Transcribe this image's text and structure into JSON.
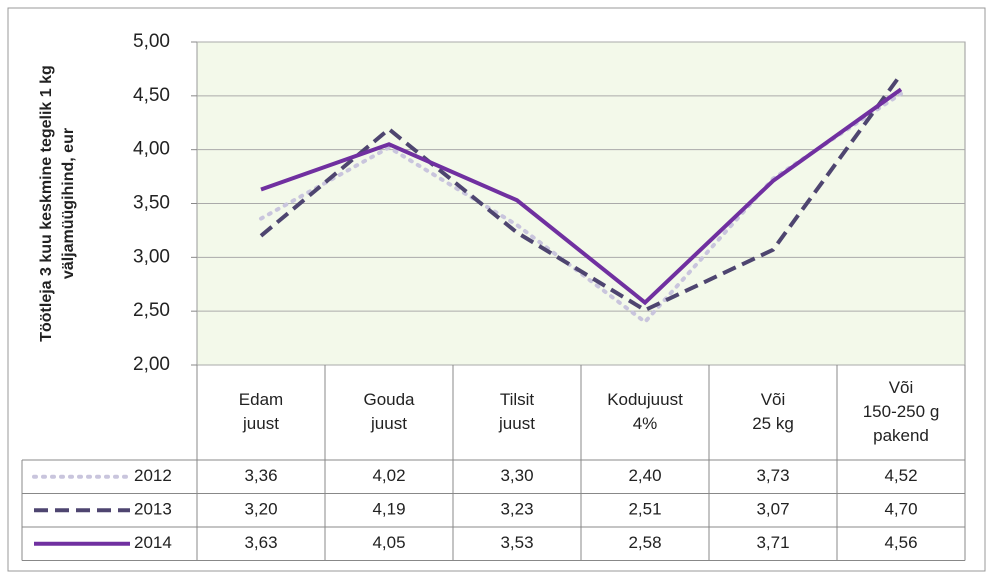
{
  "chart_data": {
    "type": "line",
    "y_label": [
      "Töötleja 3 kuu keskmine tegelik 1 kg",
      "väljamüügihind, eur"
    ],
    "categories": [
      [
        "Edam",
        "juust"
      ],
      [
        "Gouda",
        "juust"
      ],
      [
        "Tilsit",
        "juust"
      ],
      [
        "Kodujuust",
        "4%"
      ],
      [
        "Või",
        "25 kg"
      ],
      [
        "Või",
        "150-250 g",
        "pakend"
      ]
    ],
    "series": [
      {
        "name": "2012",
        "color": "#c9c5dd",
        "style": "dotted",
        "values": [
          3.36,
          4.02,
          3.3,
          2.4,
          3.73,
          4.52
        ],
        "value_labels": [
          "3,36",
          "4,02",
          "3,30",
          "2,40",
          "3,73",
          "4,52"
        ]
      },
      {
        "name": "2013",
        "color": "#4e4570",
        "style": "dashed",
        "values": [
          3.2,
          4.19,
          3.23,
          2.51,
          3.07,
          4.7
        ],
        "value_labels": [
          "3,20",
          "4,19",
          "3,23",
          "2,51",
          "3,07",
          "4,70"
        ]
      },
      {
        "name": "2014",
        "color": "#7030a0",
        "style": "solid",
        "values": [
          3.63,
          4.05,
          3.53,
          2.58,
          3.71,
          4.56
        ],
        "value_labels": [
          "3,63",
          "4,05",
          "3,53",
          "2,58",
          "3,71",
          "4,56"
        ]
      }
    ],
    "ylim": [
      2,
      5
    ],
    "yticks": [
      {
        "value": 2,
        "label": "2,00"
      },
      {
        "value": 2.5,
        "label": "2,50"
      },
      {
        "value": 3,
        "label": "3,00"
      },
      {
        "value": 3.5,
        "label": "3,50"
      },
      {
        "value": 4,
        "label": "4,00"
      },
      {
        "value": 4.5,
        "label": "4,50"
      },
      {
        "value": 5,
        "label": "5,00"
      }
    ],
    "grid": true,
    "plot_background": "#f3f9ea"
  }
}
